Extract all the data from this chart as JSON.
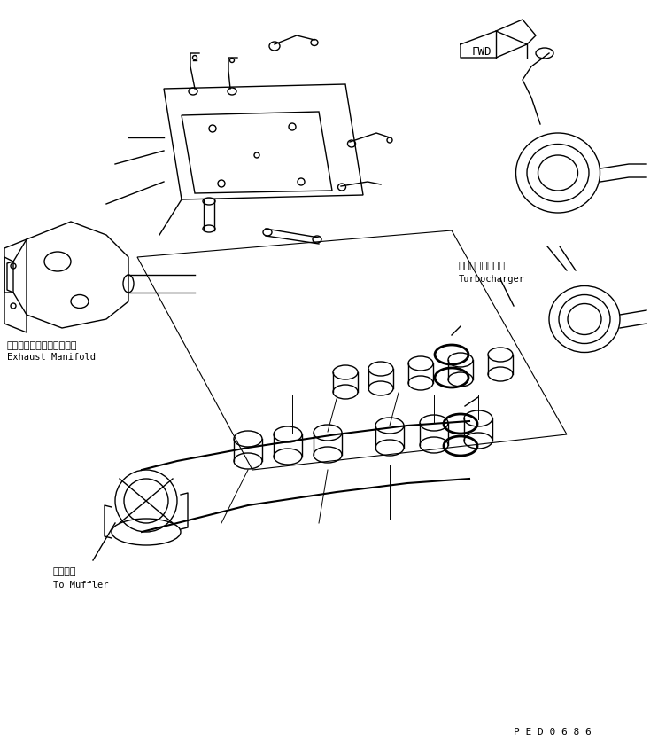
{
  "title": "",
  "bg_color": "#ffffff",
  "line_color": "#000000",
  "line_width": 1.0,
  "labels": {
    "exhaust_jp": "エキゾーストマニホールド",
    "exhaust_en": "Exhaust Manifold",
    "turbo_jp": "ターボチャージャ",
    "turbo_en": "Turbocharger",
    "muffler_jp": "マフラヘ",
    "muffler_en": "To Muffler",
    "fwd": "FWD",
    "part_number": "P E D 0 6 8 6"
  },
  "figsize": [
    7.43,
    8.46
  ],
  "dpi": 100
}
